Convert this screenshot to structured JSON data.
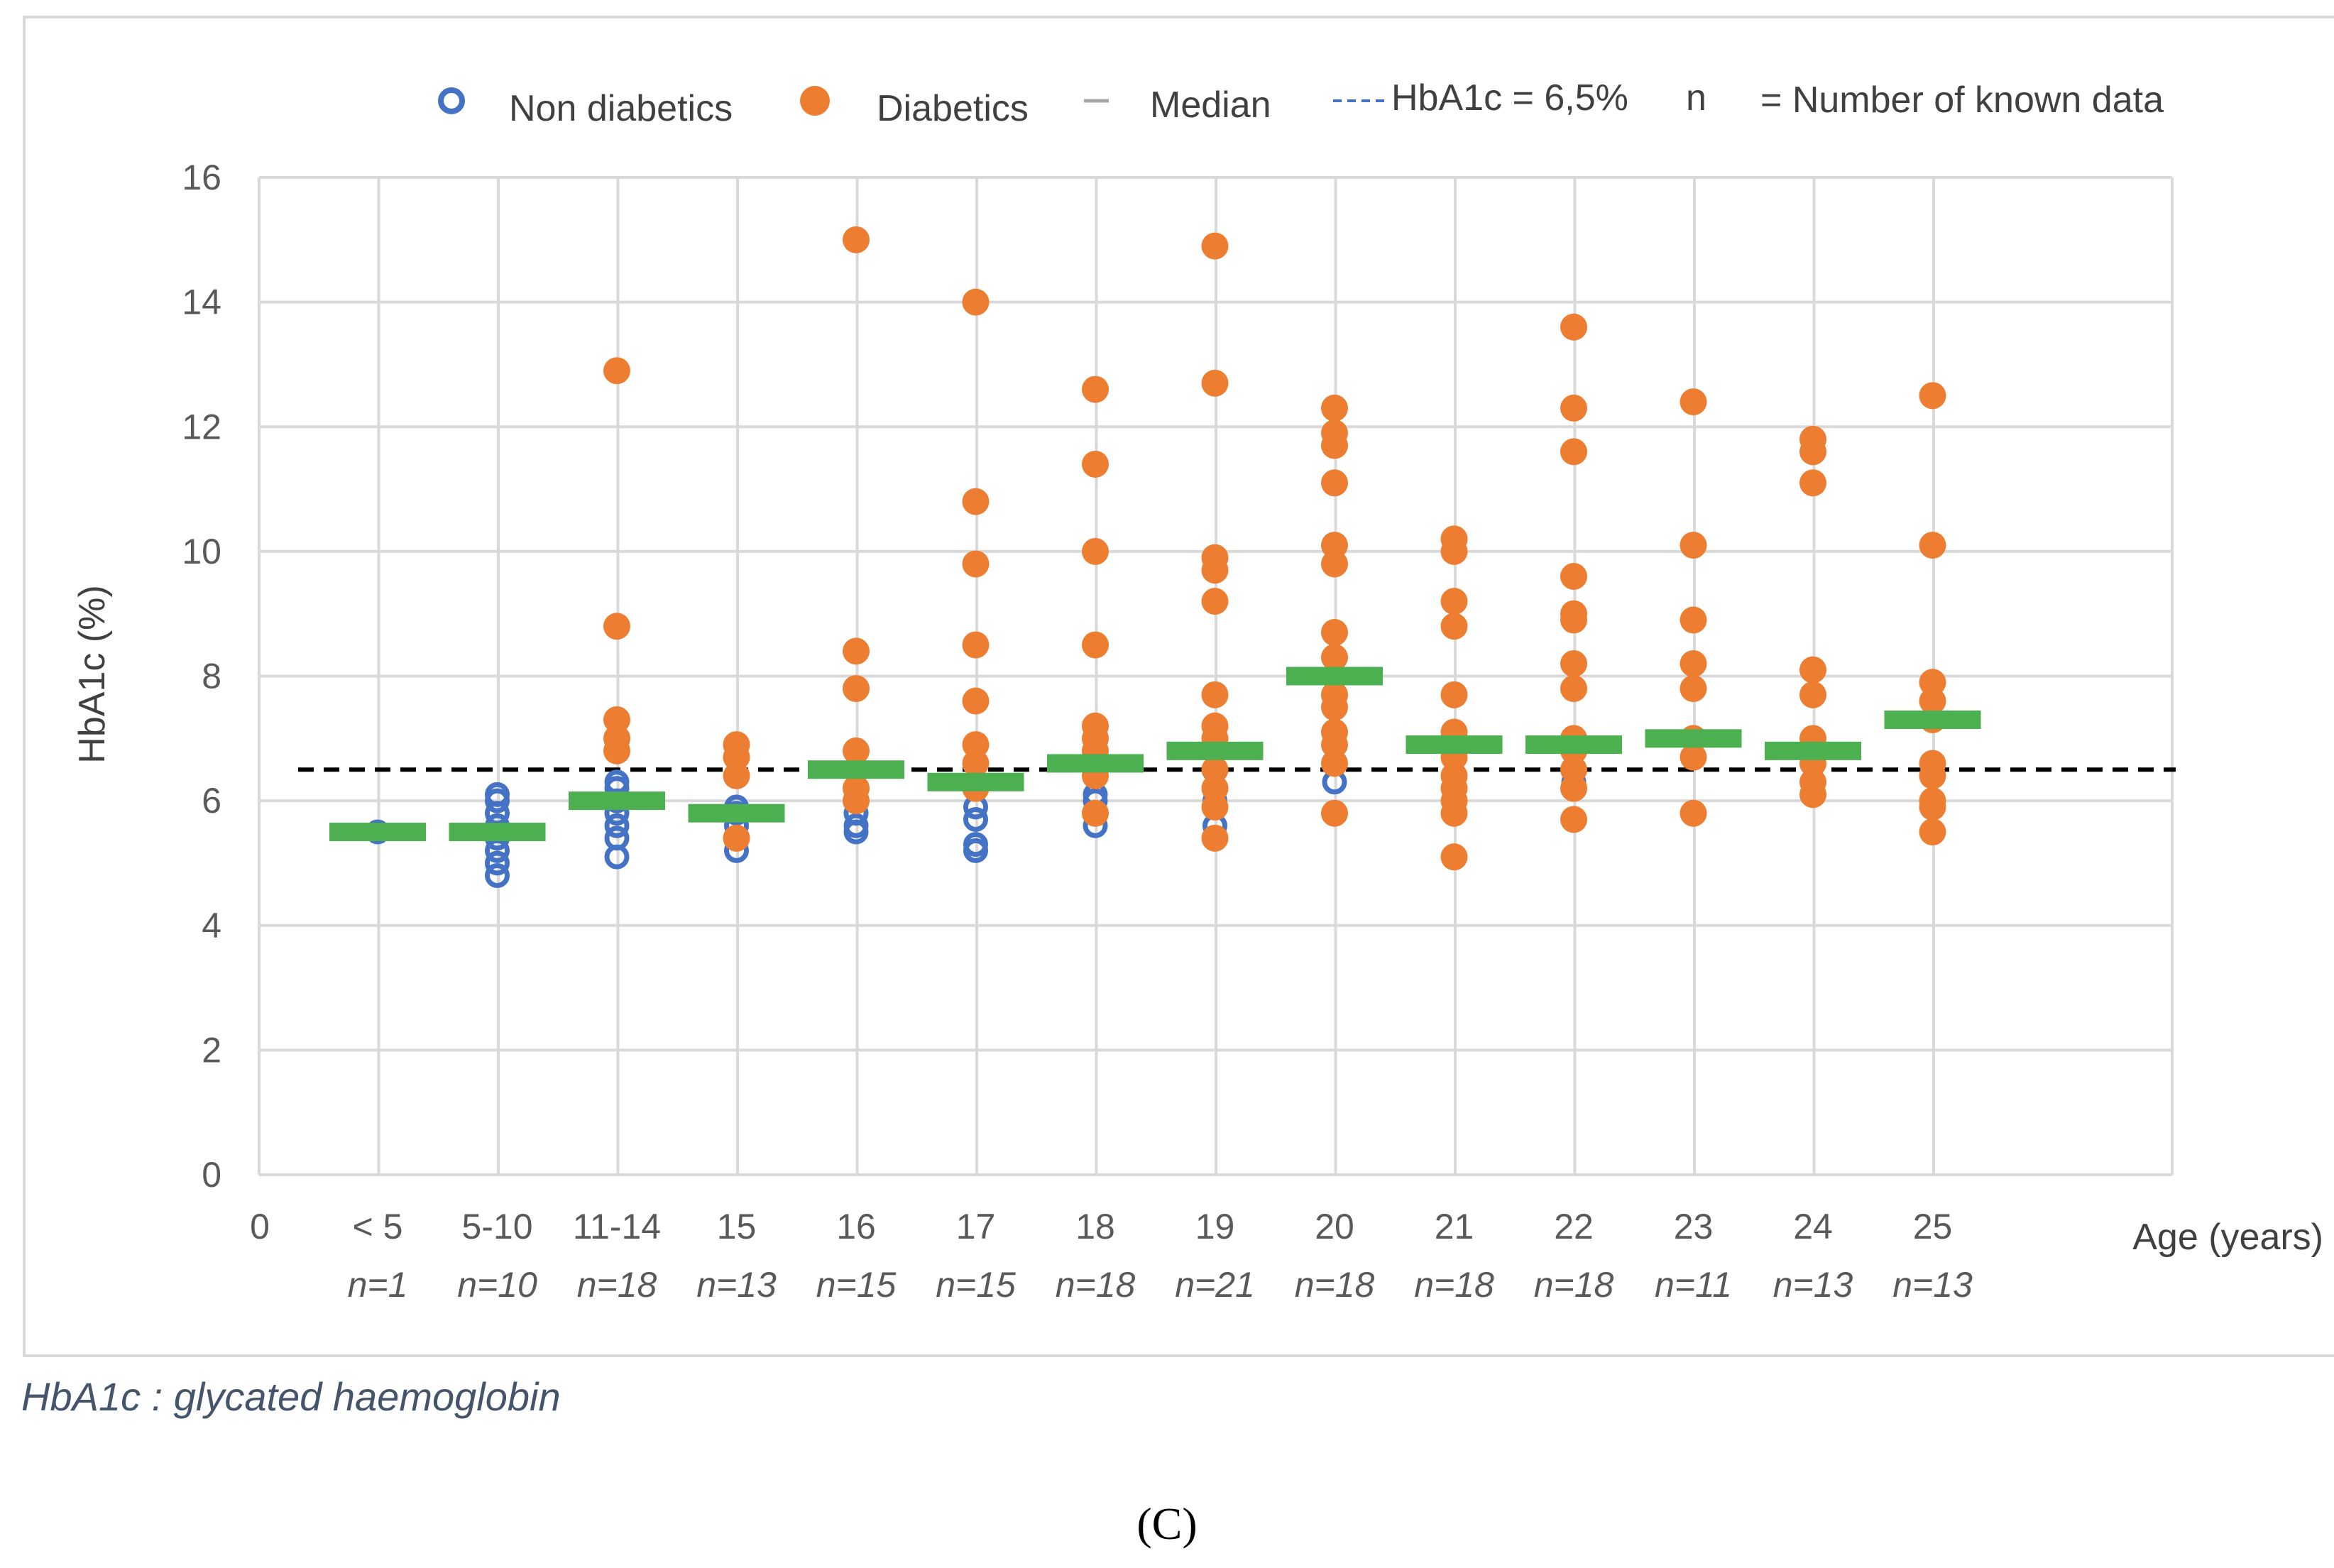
{
  "chart_data": {
    "type": "scatter",
    "ylabel": "HbA1c (%)",
    "xlabel": "Age (years)",
    "ylim": [
      0,
      16
    ],
    "yticks": [
      0,
      2,
      4,
      6,
      8,
      10,
      12,
      14,
      16
    ],
    "x_origin_label": "0",
    "threshold": {
      "value": 6.5,
      "label": "HbA1c = 6,5%"
    },
    "legend": {
      "non_diabetics": "Non diabetics",
      "diabetics": "Diabetics",
      "median": "Median",
      "threshold": "HbA1c = 6,5%",
      "n_symbol": "n",
      "n_desc": "= Number of known data"
    },
    "colors": {
      "non_diabetics": "#4472c4",
      "diabetics": "#ed7d31",
      "median": "#4caf50",
      "threshold": "#000000"
    },
    "groups": [
      {
        "label": "< 5",
        "n": "n=1",
        "median": 5.5,
        "non_diabetics": [
          5.5
        ],
        "diabetics": []
      },
      {
        "label": "5-10",
        "n": "n=10",
        "median": 5.5,
        "non_diabetics": [
          4.8,
          5.0,
          5.2,
          5.4,
          5.6,
          5.8,
          6.0,
          6.1
        ],
        "diabetics": []
      },
      {
        "label": "11-14",
        "n": "n=18",
        "median": 6.0,
        "non_diabetics": [
          5.1,
          5.4,
          5.6,
          5.8,
          6.0,
          6.2,
          6.3
        ],
        "diabetics": [
          6.8,
          7.0,
          7.3,
          8.8,
          12.9
        ]
      },
      {
        "label": "15",
        "n": "n=13",
        "median": 5.8,
        "non_diabetics": [
          5.2,
          5.4,
          5.6,
          5.8,
          5.9
        ],
        "diabetics": [
          5.4,
          6.4,
          6.7,
          6.9
        ]
      },
      {
        "label": "16",
        "n": "n=15",
        "median": 6.5,
        "non_diabetics": [
          5.5,
          5.6,
          5.8,
          6.0,
          6.2
        ],
        "diabetics": [
          6.0,
          6.2,
          6.5,
          6.8,
          7.8,
          8.4,
          15.0
        ]
      },
      {
        "label": "17",
        "n": "n=15",
        "median": 6.3,
        "non_diabetics": [
          5.2,
          5.3,
          5.7,
          5.9
        ],
        "diabetics": [
          6.2,
          6.6,
          6.9,
          7.6,
          8.5,
          9.8,
          10.8,
          14.0
        ]
      },
      {
        "label": "18",
        "n": "n=18",
        "median": 6.6,
        "non_diabetics": [
          5.6,
          5.8,
          6.0,
          6.1
        ],
        "diabetics": [
          5.8,
          6.4,
          6.8,
          7.0,
          7.2,
          8.5,
          10.0,
          11.4,
          12.6
        ]
      },
      {
        "label": "19",
        "n": "n=21",
        "median": 6.8,
        "non_diabetics": [
          5.6,
          6.0
        ],
        "diabetics": [
          5.4,
          5.9,
          6.2,
          6.5,
          7.0,
          7.2,
          7.7,
          9.2,
          9.7,
          9.9,
          12.7,
          14.9
        ]
      },
      {
        "label": "20",
        "n": "n=18",
        "median": 8.0,
        "non_diabetics": [
          6.3
        ],
        "diabetics": [
          5.8,
          6.6,
          6.9,
          7.1,
          7.5,
          7.7,
          8.3,
          8.7,
          9.8,
          10.1,
          11.1,
          11.7,
          11.9,
          12.3
        ]
      },
      {
        "label": "21",
        "n": "n=18",
        "median": 6.9,
        "non_diabetics": [
          6.0
        ],
        "diabetics": [
          5.1,
          5.8,
          6.0,
          6.2,
          6.4,
          6.7,
          7.1,
          7.7,
          8.8,
          9.2,
          10.0,
          10.2
        ]
      },
      {
        "label": "22",
        "n": "n=18",
        "median": 6.9,
        "non_diabetics": [
          6.3
        ],
        "diabetics": [
          5.7,
          6.2,
          6.5,
          6.8,
          7.0,
          7.8,
          8.2,
          8.9,
          9.0,
          9.6,
          11.6,
          12.3,
          13.6
        ]
      },
      {
        "label": "23",
        "n": "n=11",
        "median": 7.0,
        "non_diabetics": [],
        "diabetics": [
          5.8,
          6.7,
          7.0,
          7.8,
          8.2,
          8.9,
          10.1,
          12.4
        ]
      },
      {
        "label": "24",
        "n": "n=13",
        "median": 6.8,
        "non_diabetics": [],
        "diabetics": [
          6.1,
          6.3,
          6.6,
          7.0,
          7.7,
          8.1,
          11.1,
          11.6,
          11.8
        ]
      },
      {
        "label": "25",
        "n": "n=13",
        "median": 7.3,
        "non_diabetics": [],
        "diabetics": [
          5.5,
          5.9,
          6.0,
          6.4,
          6.6,
          7.3,
          7.6,
          7.9,
          10.1,
          12.5
        ]
      }
    ]
  },
  "footnote": "HbA1c : glycated haemoglobin",
  "panel_label": "(C)"
}
